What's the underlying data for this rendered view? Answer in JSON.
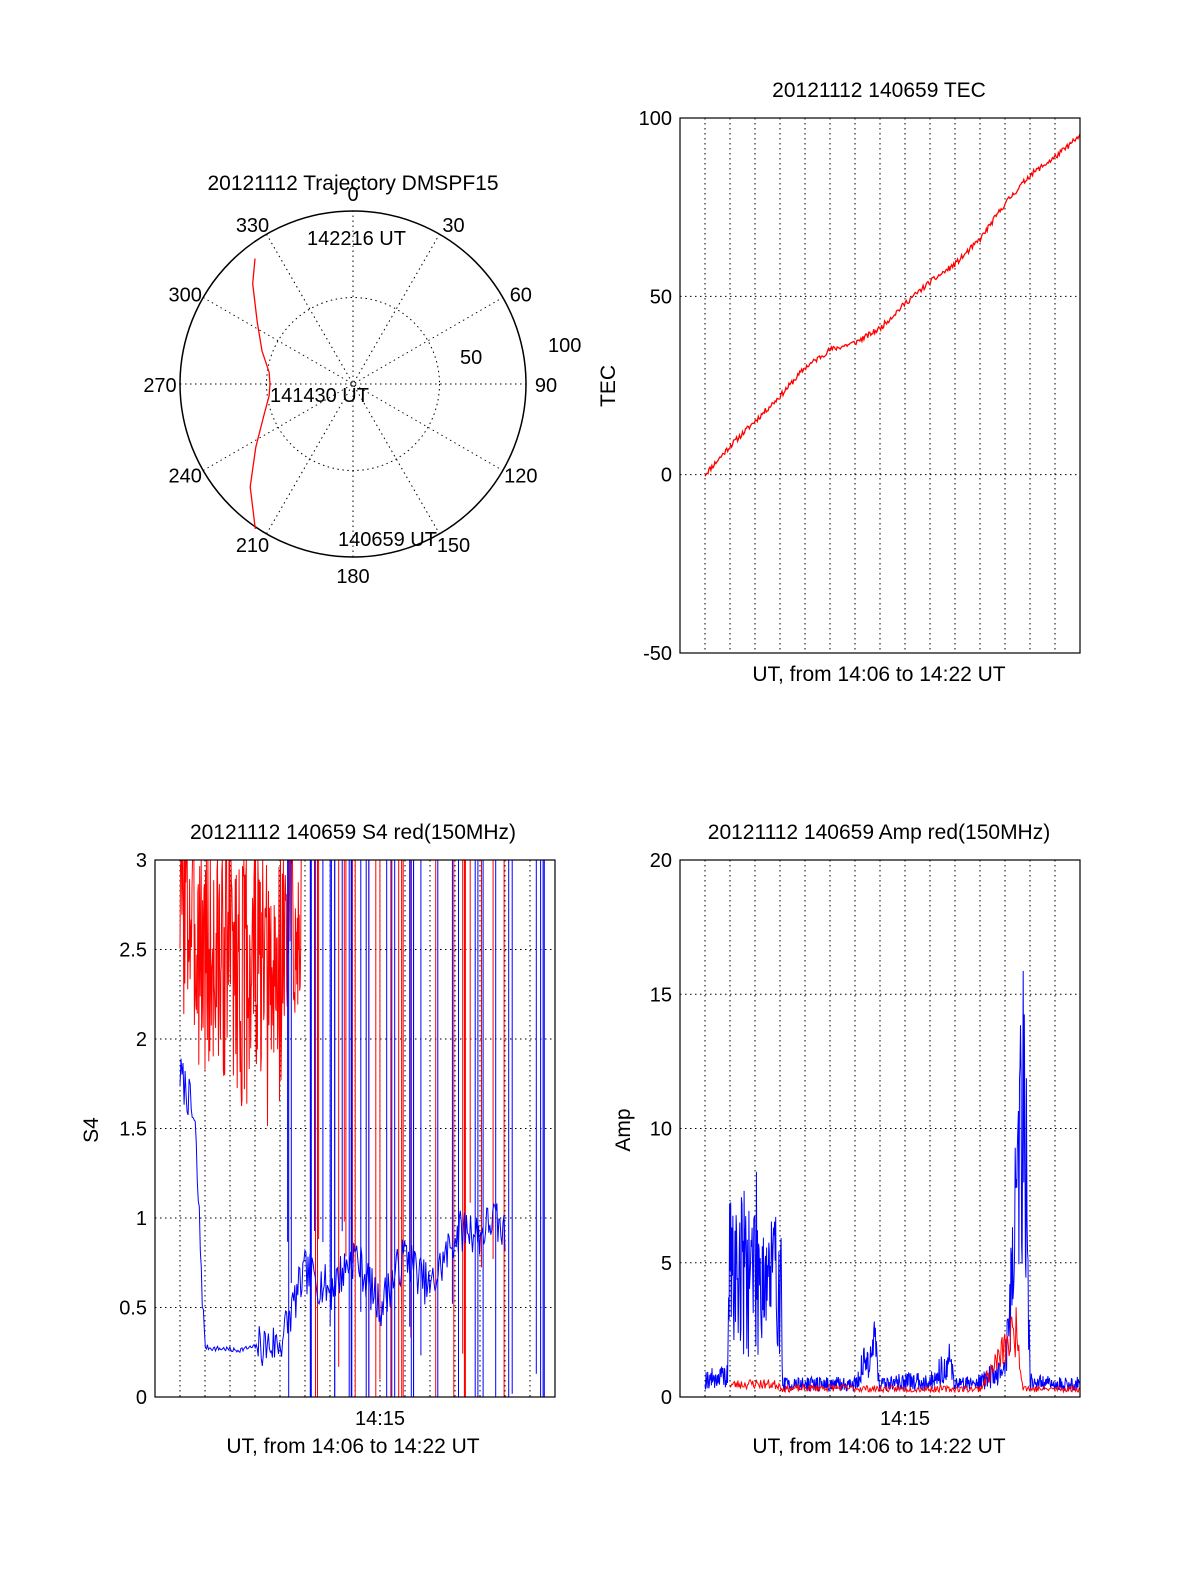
{
  "colors": {
    "red": "#ff0000",
    "blue": "#0000ff",
    "axis": "#000000",
    "background": "#ffffff"
  },
  "chart_data": [
    {
      "id": "trajectory",
      "type": "scatter",
      "projection": "polar",
      "title": "20121112 Trajectory DMSPF15",
      "angle_labels": [
        "0",
        "30",
        "60",
        "90",
        "120",
        "150",
        "180",
        "210",
        "240",
        "270",
        "300",
        "330"
      ],
      "radial_ticks": [
        "50",
        "100"
      ],
      "r_range": [
        0,
        100
      ],
      "grid": true,
      "series": [
        {
          "color": "#ff0000",
          "points_az_r": [
            [
              322,
              92
            ],
            [
              315,
              82
            ],
            [
              303,
              66
            ],
            [
              290,
              56
            ],
            [
              278,
              49
            ],
            [
              270,
              48
            ],
            [
              262,
              49
            ],
            [
              250,
              55
            ],
            [
              237,
              67
            ],
            [
              225,
              84
            ],
            [
              214,
              101
            ]
          ]
        }
      ],
      "annotations": [
        {
          "text": "142216 UT",
          "az": 322,
          "r": 92
        },
        {
          "text": "141430 UT",
          "az": 270,
          "r": 48
        },
        {
          "text": "140659 UT",
          "az": 214,
          "r": 101
        }
      ]
    },
    {
      "id": "tec",
      "type": "line",
      "title": "20121112 140659 TEC",
      "xlabel": "UT, from 14:06 to 14:22 UT",
      "ylabel": "TEC",
      "xlim": [
        6,
        22
      ],
      "ylim": [
        -50,
        100
      ],
      "yticks": [
        "-50",
        "0",
        "50",
        "100"
      ],
      "grid": true,
      "series": [
        {
          "color": "#ff0000",
          "x": [
            7.0,
            8.0,
            9.0,
            10.0,
            11.0,
            12.0,
            13.0,
            14.0,
            15.0,
            16.0,
            17.0,
            18.0,
            19.0,
            20.0,
            21.0,
            22.0
          ],
          "y": [
            0,
            8,
            15,
            22,
            30,
            35,
            37,
            41,
            48,
            54,
            59,
            66,
            76,
            84,
            89,
            95
          ]
        }
      ]
    },
    {
      "id": "s4",
      "type": "line",
      "title": "20121112 140659 S4 red(150MHz)",
      "xlabel": "UT, from 14:06 to 14:22 UT",
      "ylabel": "S4",
      "xlim": [
        6,
        22
      ],
      "ylim": [
        0,
        3
      ],
      "yticks": [
        "0",
        "0.5",
        "1",
        "1.5",
        "2",
        "2.5",
        "3"
      ],
      "xtick_label": "14:15",
      "xtick_value": 15,
      "grid": true,
      "series": [
        {
          "color": "#ff0000",
          "x": [
            7.0,
            7.5,
            8.0,
            8.5,
            9.0,
            9.5,
            10.0,
            10.5,
            11.0,
            11.5,
            12.0
          ],
          "y": [
            2.6,
            2.4,
            2.2,
            2.1,
            2.3,
            2.0,
            2.2,
            1.9,
            2.1,
            2.4,
            2.6
          ]
        },
        {
          "color": "#0000ff",
          "x": [
            7.0,
            7.3,
            7.6,
            8.0,
            8.4,
            8.8,
            9.2,
            9.6,
            10.0,
            11.0,
            12.0,
            13.0,
            14.0,
            15.0,
            16.0,
            17.0,
            18.0,
            18.5,
            19.0,
            19.5,
            20.0
          ],
          "y": [
            1.8,
            1.7,
            1.5,
            0.28,
            0.27,
            0.27,
            0.26,
            0.27,
            0.28,
            0.3,
            0.7,
            0.6,
            0.8,
            0.5,
            0.8,
            0.6,
            0.9,
            0.95,
            0.9,
            1.0,
            0.9
          ]
        }
      ]
    },
    {
      "id": "amp",
      "type": "line",
      "title": "20121112 140659 Amp red(150MHz)",
      "xlabel": "UT, from 14:06 to 14:22 UT",
      "ylabel": "Amp",
      "xlim": [
        6,
        22
      ],
      "ylim": [
        0,
        20
      ],
      "yticks": [
        "0",
        "5",
        "10",
        "15",
        "20"
      ],
      "xtick_label": "14:15",
      "xtick_value": 15,
      "grid": true,
      "series": [
        {
          "color": "#0000ff",
          "x": [
            7.0,
            7.9,
            8.0,
            9.0,
            10.0,
            10.1,
            11.0,
            12.0,
            13.0,
            13.8,
            14.0,
            15.0,
            16.0,
            16.8,
            17.0,
            18.0,
            19.0,
            19.8,
            20.0,
            21.0,
            22.0
          ],
          "y": [
            0.7,
            0.8,
            7.5,
            8.5,
            7.0,
            0.5,
            0.5,
            0.5,
            0.5,
            2.2,
            0.5,
            0.6,
            0.6,
            1.4,
            0.5,
            0.6,
            1.1,
            12.7,
            0.6,
            0.5,
            0.5
          ]
        },
        {
          "color": "#ff0000",
          "x": [
            8.0,
            9.0,
            10.0,
            10.1,
            12.0,
            14.0,
            16.0,
            18.0,
            19.5,
            19.7,
            20.0,
            22.0
          ],
          "y": [
            0.45,
            0.5,
            0.45,
            0.3,
            0.35,
            0.3,
            0.3,
            0.3,
            2.6,
            0.4,
            0.3,
            0.3
          ]
        }
      ]
    }
  ]
}
